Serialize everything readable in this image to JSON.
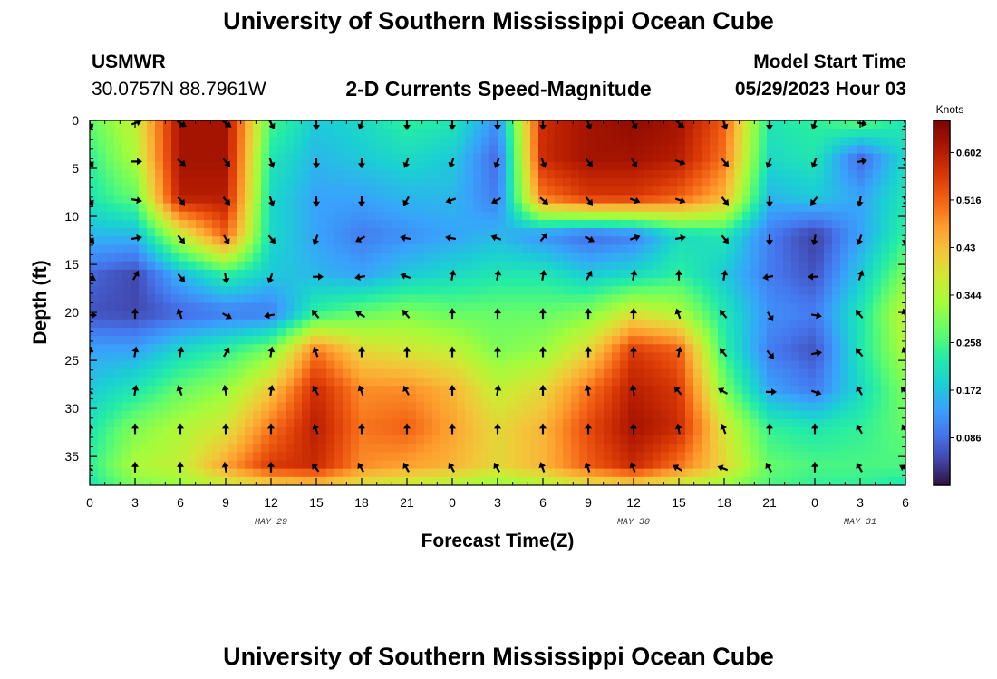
{
  "header": {
    "title": "University of Southern Mississippi Ocean Cube",
    "station": "USMWR",
    "coords": "30.0757N  88.7961W",
    "subtitle": "2-D Currents Speed-Magnitude",
    "model_label": "Model Start Time",
    "model_time": "05/29/2023 Hour 03"
  },
  "footer": {
    "title": "University of Southern Mississippi Ocean Cube"
  },
  "chart_data": {
    "type": "heatmap",
    "title": "2-D Currents Speed-Magnitude",
    "xlabel": "Forecast Time(Z)",
    "ylabel": "Depth (ft)",
    "xlim": [
      0,
      54
    ],
    "ylim": [
      0,
      38
    ],
    "y_inverted": true,
    "x_tick_values": [
      0,
      3,
      6,
      9,
      12,
      15,
      18,
      21,
      24,
      27,
      30,
      33,
      36,
      39,
      42,
      45,
      48,
      51,
      54
    ],
    "x_tick_labels": [
      "0",
      "3",
      "6",
      "9",
      "12",
      "15",
      "18",
      "21",
      "0",
      "3",
      "6",
      "9",
      "12",
      "15",
      "18",
      "21",
      "0",
      "3",
      "6"
    ],
    "y_tick_values": [
      0,
      5,
      10,
      15,
      20,
      25,
      30,
      35
    ],
    "y_tick_labels": [
      "0",
      "5",
      "10",
      "15",
      "20",
      "25",
      "30",
      "35"
    ],
    "date_labels": [
      {
        "x": 12,
        "text": "MAY 29"
      },
      {
        "x": 36,
        "text": "MAY 30"
      },
      {
        "x": 51,
        "text": "MAY 31"
      }
    ],
    "colorbar": {
      "unit": "Knots",
      "range": [
        0.0,
        0.66
      ],
      "tick_values": [
        0.086,
        0.172,
        0.258,
        0.344,
        0.43,
        0.516,
        0.602
      ],
      "tick_labels": [
        "0.086",
        "0.172",
        "0.258",
        "0.344",
        "0.43",
        "0.516",
        "0.602"
      ]
    },
    "speed_grid": {
      "x": [
        0,
        3,
        6,
        9,
        12,
        15,
        18,
        21,
        24,
        27,
        30,
        33,
        36,
        39,
        42,
        45,
        48,
        51,
        54
      ],
      "depth": [
        0,
        4,
        8,
        12,
        16,
        20,
        24,
        28,
        32,
        36,
        38
      ],
      "values": [
        [
          0.28,
          0.36,
          0.62,
          0.62,
          0.26,
          0.18,
          0.2,
          0.24,
          0.22,
          0.12,
          0.58,
          0.62,
          0.64,
          0.62,
          0.52,
          0.22,
          0.24,
          0.28,
          0.22
        ],
        [
          0.24,
          0.34,
          0.62,
          0.62,
          0.22,
          0.16,
          0.18,
          0.2,
          0.18,
          0.08,
          0.58,
          0.62,
          0.62,
          0.6,
          0.5,
          0.2,
          0.22,
          0.08,
          0.2
        ],
        [
          0.22,
          0.28,
          0.6,
          0.6,
          0.2,
          0.14,
          0.14,
          0.16,
          0.16,
          0.1,
          0.5,
          0.56,
          0.56,
          0.52,
          0.44,
          0.16,
          0.18,
          0.14,
          0.22
        ],
        [
          0.16,
          0.16,
          0.36,
          0.52,
          0.2,
          0.14,
          0.1,
          0.12,
          0.14,
          0.16,
          0.12,
          0.08,
          0.1,
          0.2,
          0.22,
          0.1,
          0.04,
          0.14,
          0.24
        ],
        [
          0.08,
          0.05,
          0.16,
          0.24,
          0.18,
          0.16,
          0.14,
          0.18,
          0.2,
          0.22,
          0.22,
          0.18,
          0.2,
          0.24,
          0.18,
          0.1,
          0.06,
          0.18,
          0.3
        ],
        [
          0.06,
          0.05,
          0.08,
          0.1,
          0.1,
          0.24,
          0.28,
          0.3,
          0.28,
          0.28,
          0.28,
          0.3,
          0.38,
          0.34,
          0.22,
          0.12,
          0.1,
          0.22,
          0.36
        ],
        [
          0.14,
          0.14,
          0.2,
          0.24,
          0.3,
          0.5,
          0.4,
          0.38,
          0.36,
          0.3,
          0.32,
          0.4,
          0.56,
          0.52,
          0.24,
          0.1,
          0.06,
          0.22,
          0.34
        ],
        [
          0.18,
          0.22,
          0.28,
          0.32,
          0.42,
          0.58,
          0.48,
          0.48,
          0.44,
          0.36,
          0.4,
          0.5,
          0.6,
          0.56,
          0.3,
          0.14,
          0.1,
          0.2,
          0.3
        ],
        [
          0.22,
          0.3,
          0.34,
          0.38,
          0.5,
          0.6,
          0.5,
          0.52,
          0.46,
          0.4,
          0.44,
          0.54,
          0.62,
          0.58,
          0.38,
          0.24,
          0.22,
          0.24,
          0.28
        ],
        [
          0.24,
          0.34,
          0.36,
          0.46,
          0.56,
          0.58,
          0.48,
          0.46,
          0.44,
          0.4,
          0.44,
          0.52,
          0.58,
          0.5,
          0.4,
          0.28,
          0.26,
          0.26,
          0.26
        ],
        [
          0.22,
          0.3,
          0.32,
          0.36,
          0.4,
          0.42,
          0.38,
          0.36,
          0.34,
          0.32,
          0.34,
          0.38,
          0.4,
          0.36,
          0.32,
          0.26,
          0.24,
          0.24,
          0.22
        ]
      ]
    },
    "vectors": {
      "depths": [
        0,
        4,
        8,
        12,
        16,
        20,
        24,
        28,
        32,
        36
      ],
      "directions_deg": [
        [
          160,
          70,
          120,
          125,
          150,
          180,
          200,
          180,
          180,
          180,
          180,
          160,
          150,
          130,
          160,
          180,
          200,
          100,
          160
        ],
        [
          150,
          90,
          130,
          140,
          160,
          180,
          180,
          200,
          200,
          200,
          160,
          140,
          150,
          110,
          140,
          200,
          200,
          80,
          160
        ],
        [
          150,
          100,
          140,
          140,
          160,
          180,
          180,
          210,
          250,
          240,
          130,
          140,
          110,
          110,
          140,
          180,
          220,
          190,
          160
        ],
        [
          140,
          80,
          140,
          150,
          140,
          200,
          240,
          280,
          280,
          290,
          40,
          120,
          70,
          80,
          140,
          180,
          190,
          200,
          180
        ],
        [
          120,
          30,
          140,
          170,
          200,
          90,
          260,
          290,
          10,
          10,
          10,
          30,
          10,
          0,
          10,
          260,
          270,
          20,
          30
        ],
        [
          90,
          0,
          340,
          120,
          260,
          320,
          300,
          320,
          0,
          0,
          0,
          0,
          0,
          340,
          320,
          150,
          100,
          320,
          340
        ],
        [
          10,
          10,
          10,
          30,
          10,
          340,
          0,
          0,
          0,
          0,
          0,
          0,
          0,
          10,
          320,
          140,
          80,
          320,
          340
        ],
        [
          300,
          10,
          340,
          350,
          10,
          330,
          340,
          330,
          0,
          10,
          0,
          350,
          350,
          320,
          300,
          90,
          110,
          330,
          320
        ],
        [
          0,
          0,
          0,
          0,
          0,
          340,
          0,
          0,
          0,
          0,
          0,
          0,
          0,
          350,
          340,
          0,
          0,
          330,
          330
        ],
        [
          300,
          0,
          0,
          350,
          0,
          320,
          330,
          330,
          330,
          330,
          340,
          340,
          340,
          300,
          290,
          330,
          0,
          330,
          300
        ]
      ]
    }
  }
}
